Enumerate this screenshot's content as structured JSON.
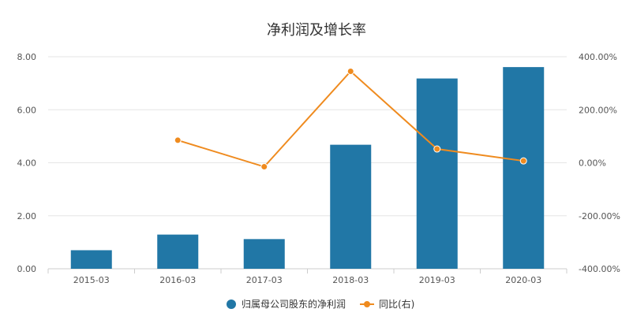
{
  "chart_data": {
    "type": "bar",
    "title": "净利润及增长率",
    "categories": [
      "2015-03",
      "2016-03",
      "2017-03",
      "2018-03",
      "2019-03",
      "2020-03"
    ],
    "series": [
      {
        "name": "归属母公司股东的净利润",
        "type": "bar",
        "axis": "left",
        "color": "#2177a6",
        "values": [
          0.7,
          1.29,
          1.12,
          4.68,
          7.18,
          7.61
        ]
      },
      {
        "name": "同比(右)",
        "type": "line",
        "axis": "right",
        "color": "#ef8b1f",
        "values": [
          null,
          85.0,
          -15.0,
          345.0,
          52.0,
          7.0
        ]
      }
    ],
    "y_left": {
      "ylim": [
        0,
        8
      ],
      "ticks": [
        0,
        2,
        4,
        6,
        8
      ],
      "tick_labels": [
        "0.00",
        "2.00",
        "4.00",
        "6.00",
        "8.00"
      ]
    },
    "y_right": {
      "ylim": [
        -400,
        400
      ],
      "ticks": [
        -400,
        -200,
        0,
        200,
        400
      ],
      "tick_labels": [
        "-400.00%",
        "-200.00%",
        "0.00%",
        "200.00%",
        "400.00%"
      ]
    },
    "grid": true,
    "legend_position": "bottom-center"
  }
}
